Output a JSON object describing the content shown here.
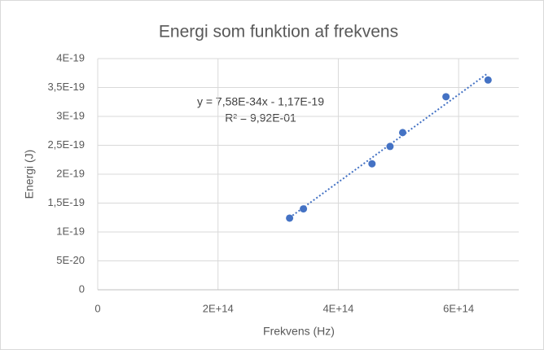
{
  "chart_data": {
    "type": "scatter",
    "title": "Energi som funktion af frekvens",
    "x_label": "Frekvens (Hz)",
    "y_label": "Energi (J)",
    "series": [
      {
        "name": "Energi",
        "color": "#4472c4",
        "x": [
          319000000000000.0,
          342000000000000.0,
          456000000000000.0,
          486000000000000.0,
          507000000000000.0,
          579000000000000.0,
          649000000000000.0
        ],
        "values": [
          1.24e-19,
          1.4e-19,
          2.18e-19,
          2.48e-19,
          2.72e-19,
          3.34e-19,
          3.63e-19
        ]
      }
    ],
    "trendline": {
      "slope": 7.58e-34,
      "intercept": -1.17e-19,
      "style": "dotted",
      "equation": "y = 7,58E-34x - 1,17E-19",
      "r_squared": "R² = 9,92E-01"
    },
    "xlim": [
      0,
      700000000000000.0
    ],
    "xticks": [
      0,
      {
        "value": 200000000000000.0,
        "label": "2E+14"
      },
      {
        "value": 400000000000000.0,
        "label": "4E+14"
      },
      {
        "value": 600000000000000.0,
        "label": "6E+14"
      }
    ],
    "ylim": [
      0,
      4e-19
    ],
    "yticks": [
      0,
      {
        "value": 5e-20,
        "label": "5E-20"
      },
      {
        "value": 1e-19,
        "label": "1E-19"
      },
      {
        "value": 1.5e-19,
        "label": "1,5E-19"
      },
      {
        "value": 2e-19,
        "label": "2E-19"
      },
      {
        "value": 2.5e-19,
        "label": "2,5E-19"
      },
      {
        "value": 3e-19,
        "label": "3E-19"
      },
      {
        "value": 3.5e-19,
        "label": "3,5E-19"
      },
      {
        "value": 4e-19,
        "label": "4E-19"
      }
    ],
    "grid": true
  }
}
